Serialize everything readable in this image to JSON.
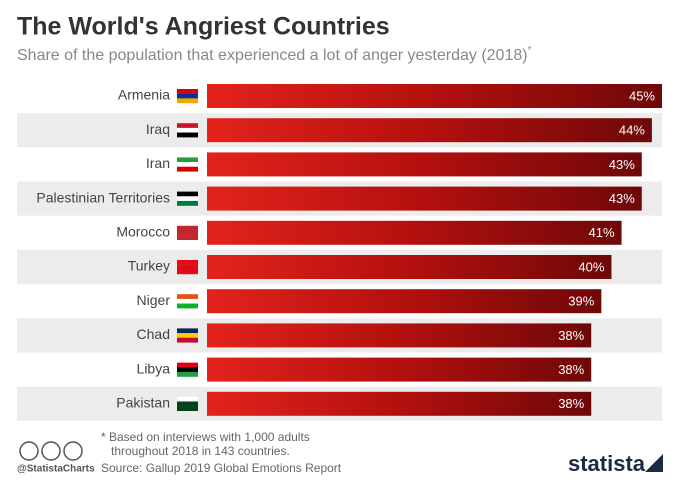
{
  "chart_data": {
    "type": "bar",
    "orientation": "horizontal",
    "title": "The World's Angriest Countries",
    "subtitle": "Share of the population that experienced a lot of anger yesterday (2018)",
    "subtitle_marker": "*",
    "categories": [
      "Armenia",
      "Iraq",
      "Iran",
      "Palestinian Territories",
      "Morocco",
      "Turkey",
      "Niger",
      "Chad",
      "Libya",
      "Pakistan"
    ],
    "values": [
      45,
      44,
      43,
      43,
      41,
      40,
      39,
      38,
      38,
      38
    ],
    "value_labels": [
      "45%",
      "44%",
      "43%",
      "43%",
      "41%",
      "40%",
      "39%",
      "38%",
      "38%",
      "38%"
    ],
    "color": "#c8140f",
    "footnote": [
      "* Based on interviews with 1,000 adults",
      "throughout 2018 in 143 countries."
    ],
    "source": "Source: Gallup 2019 Global Emotions Report",
    "handle": "@StatistaCharts",
    "brand": "statista"
  }
}
